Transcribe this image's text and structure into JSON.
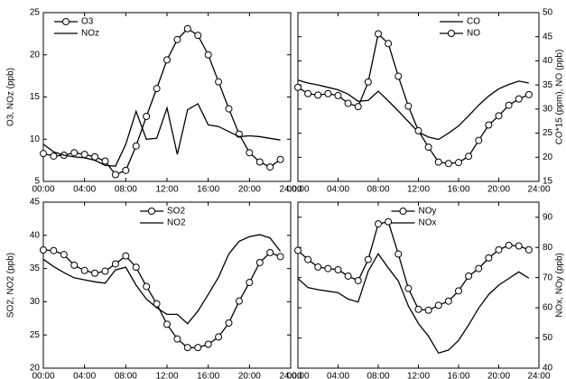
{
  "chart_data": [
    {
      "type": "line",
      "y_label": "O3, NOz (ppb)",
      "y_axis_side": "left",
      "legend": "upper left",
      "x": [
        0,
        1,
        2,
        3,
        4,
        5,
        6,
        7,
        8,
        9,
        10,
        11,
        12,
        13,
        14,
        15,
        16,
        17,
        18,
        19,
        20,
        21,
        22,
        23
      ],
      "xlim": [
        0,
        24
      ],
      "xticks": [
        {
          "value": 0,
          "label": "00:00"
        },
        {
          "value": 4,
          "label": "04:00"
        },
        {
          "value": 8,
          "label": "08:00"
        },
        {
          "value": 12,
          "label": "12:00"
        },
        {
          "value": 16,
          "label": "16:00"
        },
        {
          "value": 20,
          "label": "20:00"
        },
        {
          "value": 24,
          "label": "24:00"
        }
      ],
      "ylim": [
        5,
        25
      ],
      "yticks": [
        5,
        10,
        15,
        20,
        25
      ],
      "series": [
        {
          "name": "O3",
          "color": "#000000",
          "marker": "circle",
          "values": [
            8.3,
            8.0,
            8.1,
            8.4,
            8.2,
            7.9,
            7.4,
            5.8,
            6.3,
            9.2,
            12.7,
            16.0,
            19.4,
            21.8,
            23.1,
            22.3,
            20.0,
            16.8,
            13.6,
            10.6,
            8.4,
            7.3,
            6.7,
            7.6
          ]
        },
        {
          "name": "NOz",
          "color": "#000000",
          "marker": "none",
          "values": [
            9.4,
            8.5,
            8.1,
            7.9,
            7.8,
            7.5,
            6.9,
            6.8,
            9.4,
            13.3,
            10.0,
            10.1,
            13.7,
            8.2,
            13.5,
            14.2,
            11.7,
            11.5,
            10.9,
            10.3,
            10.4,
            10.3,
            10.1,
            9.9
          ]
        }
      ]
    },
    {
      "type": "line",
      "y_label": "CO*15 (ppm), NO (ppb)",
      "y_axis_side": "right",
      "legend": "upper right",
      "x": [
        0,
        1,
        2,
        3,
        4,
        5,
        6,
        7,
        8,
        9,
        10,
        11,
        12,
        13,
        14,
        15,
        16,
        17,
        18,
        19,
        20,
        21,
        22,
        23
      ],
      "xlim": [
        0,
        24
      ],
      "xticks": [
        {
          "value": 0,
          "label": "00:00"
        },
        {
          "value": 4,
          "label": "04:00"
        },
        {
          "value": 8,
          "label": "08:00"
        },
        {
          "value": 12,
          "label": "12:00"
        },
        {
          "value": 16,
          "label": "16:00"
        },
        {
          "value": 20,
          "label": "20:00"
        },
        {
          "value": 24,
          "label": "24:00"
        }
      ],
      "ylim": [
        15,
        50
      ],
      "yticks": [
        15,
        20,
        25,
        30,
        35,
        40,
        45,
        50
      ],
      "series": [
        {
          "name": "CO",
          "color": "#000000",
          "marker": "none",
          "values": [
            36.0,
            35.4,
            35.0,
            34.5,
            34.0,
            33.1,
            31.6,
            31.8,
            33.7,
            31.7,
            29.6,
            27.4,
            25.2,
            24.2,
            23.7,
            25.0,
            26.5,
            28.6,
            30.8,
            32.7,
            34.2,
            35.1,
            35.8,
            35.4
          ]
        },
        {
          "name": "NO",
          "color": "#000000",
          "marker": "circle",
          "values": [
            34.5,
            33.2,
            32.9,
            33.2,
            32.8,
            31.2,
            30.5,
            35.6,
            45.6,
            43.6,
            36.8,
            30.6,
            25.5,
            22.1,
            19.0,
            18.7,
            18.9,
            20.2,
            23.5,
            26.7,
            28.6,
            30.8,
            32.1,
            33.0
          ]
        }
      ]
    },
    {
      "type": "line",
      "y_label": "SO2, NO2 (ppb)",
      "y_axis_side": "left",
      "legend": "upper center",
      "x": [
        0,
        1,
        2,
        3,
        4,
        5,
        6,
        7,
        8,
        9,
        10,
        11,
        12,
        13,
        14,
        15,
        16,
        17,
        18,
        19,
        20,
        21,
        22,
        23
      ],
      "xlim": [
        0,
        24
      ],
      "xticks": [
        {
          "value": 0,
          "label": "00:00"
        },
        {
          "value": 4,
          "label": "04:00"
        },
        {
          "value": 8,
          "label": "08:00"
        },
        {
          "value": 12,
          "label": "12:00"
        },
        {
          "value": 16,
          "label": "16:00"
        },
        {
          "value": 20,
          "label": "20:00"
        },
        {
          "value": 24,
          "label": "24:00"
        }
      ],
      "ylim": [
        20,
        45
      ],
      "yticks": [
        20,
        25,
        30,
        35,
        40,
        45
      ],
      "series": [
        {
          "name": "SO2",
          "color": "#000000",
          "marker": "circle",
          "values": [
            37.8,
            37.7,
            37.1,
            35.5,
            34.7,
            34.3,
            34.6,
            35.7,
            36.9,
            35.2,
            32.3,
            29.7,
            26.6,
            24.4,
            23.1,
            23.1,
            23.6,
            24.7,
            26.8,
            30.1,
            32.9,
            35.9,
            37.4,
            36.8
          ]
        },
        {
          "name": "NO2",
          "color": "#000000",
          "marker": "none",
          "values": [
            36.4,
            35.3,
            34.4,
            33.6,
            33.3,
            33.0,
            32.8,
            34.8,
            35.2,
            32.5,
            30.4,
            29.1,
            28.1,
            28.1,
            26.7,
            28.6,
            31.1,
            33.7,
            37.2,
            39.1,
            39.8,
            40.1,
            39.6,
            37.6
          ]
        }
      ]
    },
    {
      "type": "line",
      "y_label": "NOx, NOy (ppb)",
      "y_axis_side": "right",
      "legend": "upper center",
      "x": [
        0,
        1,
        2,
        3,
        4,
        5,
        6,
        7,
        8,
        9,
        10,
        11,
        12,
        13,
        14,
        15,
        16,
        17,
        18,
        19,
        20,
        21,
        22,
        23
      ],
      "xlim": [
        0,
        24
      ],
      "xticks": [
        {
          "value": 0,
          "label": "00:00"
        },
        {
          "value": 4,
          "label": "04:00"
        },
        {
          "value": 8,
          "label": "08:00"
        },
        {
          "value": 12,
          "label": "12:00"
        },
        {
          "value": 16,
          "label": "16:00"
        },
        {
          "value": 20,
          "label": "20:00"
        },
        {
          "value": 24,
          "label": "24:00"
        }
      ],
      "ylim": [
        40,
        95
      ],
      "yticks": [
        40,
        50,
        60,
        70,
        80,
        90
      ],
      "series": [
        {
          "name": "NOy",
          "color": "#000000",
          "marker": "circle",
          "values": [
            79,
            76,
            73.5,
            73,
            72.6,
            70.5,
            69,
            76,
            87.8,
            88.5,
            77.8,
            66.4,
            59.5,
            59.2,
            60.8,
            62.2,
            65.6,
            70.5,
            73,
            76.5,
            79.2,
            80.7,
            80.5,
            79.2
          ]
        },
        {
          "name": "NOx",
          "color": "#000000",
          "marker": "none",
          "values": [
            69.7,
            66.7,
            66,
            65.5,
            65,
            62.9,
            61.9,
            72.1,
            77.9,
            73.2,
            68.9,
            60.6,
            54.8,
            50.6,
            45,
            46,
            49.2,
            54.3,
            59.9,
            64.4,
            67.5,
            69.7,
            71.9,
            69.8
          ]
        }
      ]
    }
  ]
}
